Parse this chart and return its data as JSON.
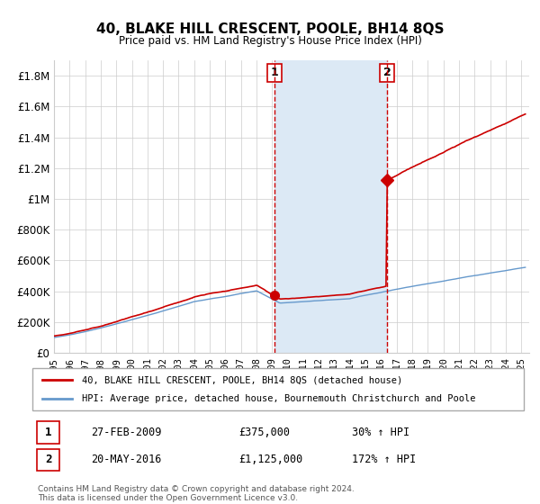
{
  "title": "40, BLAKE HILL CRESCENT, POOLE, BH14 8QS",
  "subtitle": "Price paid vs. HM Land Registry's House Price Index (HPI)",
  "xlabel": "",
  "ylabel": "",
  "xlim": [
    1995.0,
    2025.5
  ],
  "ylim": [
    0,
    1900000
  ],
  "yticks": [
    0,
    200000,
    400000,
    600000,
    800000,
    1000000,
    1200000,
    1400000,
    1600000,
    1800000
  ],
  "ytick_labels": [
    "£0",
    "£200K",
    "£400K",
    "£600K",
    "£800K",
    "£1M",
    "£1.2M",
    "£1.4M",
    "£1.6M",
    "£1.8M"
  ],
  "xticks": [
    1995,
    1996,
    1997,
    1998,
    1999,
    2000,
    2001,
    2002,
    2003,
    2004,
    2005,
    2006,
    2007,
    2008,
    2009,
    2010,
    2011,
    2012,
    2013,
    2014,
    2015,
    2016,
    2017,
    2018,
    2019,
    2020,
    2021,
    2022,
    2023,
    2024,
    2025
  ],
  "sale1_x": 2009.15,
  "sale1_y": 375000,
  "sale1_label": "1",
  "sale2_x": 2016.38,
  "sale2_y": 1125000,
  "sale2_label": "2",
  "shade_x1": 2009.15,
  "shade_x2": 2016.38,
  "shade_color": "#dce9f5",
  "dashed_line_color": "#cc0000",
  "red_line_color": "#cc0000",
  "blue_line_color": "#6699cc",
  "background_color": "#ffffff",
  "grid_color": "#cccccc",
  "legend_label_red": "40, BLAKE HILL CRESCENT, POOLE, BH14 8QS (detached house)",
  "legend_label_blue": "HPI: Average price, detached house, Bournemouth Christchurch and Poole",
  "footer1": "Contains HM Land Registry data © Crown copyright and database right 2024.",
  "footer2": "This data is licensed under the Open Government Licence v3.0.",
  "table_row1": [
    "1",
    "27-FEB-2009",
    "£375,000",
    "30% ↑ HPI"
  ],
  "table_row2": [
    "2",
    "20-MAY-2016",
    "£1,125,000",
    "172% ↑ HPI"
  ]
}
